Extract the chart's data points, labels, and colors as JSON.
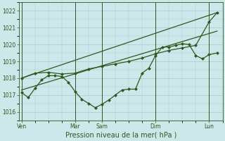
{
  "background_color": "#cce8ea",
  "line_color": "#2d5a1b",
  "grid_color": "#a8c8ca",
  "xlabel": "Pression niveau de la mer( hPa )",
  "ylim": [
    1015.5,
    1022.5
  ],
  "yticks": [
    1016,
    1017,
    1018,
    1019,
    1020,
    1021,
    1022
  ],
  "xtick_labels": [
    "Ven",
    "",
    "Mar",
    "Sam",
    "",
    "Dim",
    "",
    "Lun"
  ],
  "xtick_positions": [
    0,
    1,
    2,
    3,
    4,
    5,
    6,
    7
  ],
  "vline_positions": [
    0,
    2,
    3,
    5,
    7
  ],
  "vline_labels": [
    "Ven",
    "Mar",
    "Sam",
    "Dim",
    "Lun"
  ],
  "xlim": [
    -0.1,
    7.5
  ],
  "line1_x": [
    0.0,
    0.25,
    0.5,
    0.75,
    1.0,
    1.25,
    1.5,
    1.75,
    2.0,
    2.25,
    2.5,
    2.75,
    3.0,
    3.25,
    3.5,
    3.75,
    4.0,
    4.25,
    4.5,
    4.75,
    5.0,
    5.25,
    5.5,
    5.75,
    6.0,
    6.25,
    6.5,
    6.75,
    7.0,
    7.3
  ],
  "line1_y": [
    1017.15,
    1016.85,
    1017.4,
    1017.9,
    1018.15,
    1018.15,
    1018.1,
    1017.75,
    1017.2,
    1016.75,
    1016.5,
    1016.25,
    1016.45,
    1016.7,
    1017.0,
    1017.3,
    1017.35,
    1017.35,
    1018.3,
    1018.6,
    1019.35,
    1019.85,
    1019.85,
    1019.95,
    1020.05,
    1020.0,
    1019.35,
    1019.15,
    1019.4,
    1019.5
  ],
  "line2_x": [
    0.0,
    0.5,
    1.0,
    1.5,
    2.0,
    2.5,
    3.0,
    3.5,
    4.0,
    4.5,
    5.0,
    5.5,
    6.0,
    6.5,
    7.0,
    7.3
  ],
  "line2_y": [
    1018.0,
    1018.3,
    1018.35,
    1018.25,
    1018.3,
    1018.55,
    1018.7,
    1018.85,
    1019.0,
    1019.2,
    1019.45,
    1019.65,
    1019.8,
    1019.95,
    1021.35,
    1021.9
  ],
  "trend1_x": [
    0.0,
    7.3
  ],
  "trend1_y": [
    1017.3,
    1020.8
  ],
  "trend2_x": [
    0.0,
    7.3
  ],
  "trend2_y": [
    1018.0,
    1021.9
  ],
  "marker_size": 2.5,
  "linewidth": 0.9,
  "tick_fontsize": 5.5,
  "xlabel_fontsize": 7.0
}
